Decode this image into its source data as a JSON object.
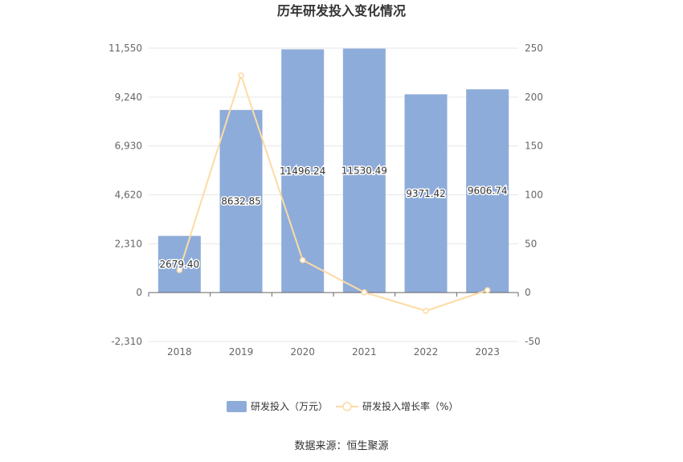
{
  "chart_data": {
    "type": "bar",
    "title": "历年研发投入变化情况",
    "categories": [
      "2018",
      "2019",
      "2020",
      "2021",
      "2022",
      "2023"
    ],
    "series": [
      {
        "name": "研发投入（万元）",
        "type": "bar",
        "axis": "left",
        "values": [
          2679.4,
          8632.85,
          11496.24,
          11530.49,
          9371.42,
          9606.74
        ],
        "labels": [
          "2679.40",
          "8632.85",
          "11496.24",
          "11530.49",
          "9371.42",
          "9606.74"
        ],
        "color": "#8eacda"
      },
      {
        "name": "研发投入增长率（%）",
        "type": "line",
        "axis": "right",
        "values": [
          23,
          222.2,
          33.2,
          0.3,
          -18.7,
          2.5
        ],
        "color": "#fddba4"
      }
    ],
    "y_left": {
      "ticks": [
        "-2,310",
        "0",
        "2,310",
        "4,620",
        "6,930",
        "9,240",
        "11,550"
      ],
      "range": [
        -2310,
        11550
      ]
    },
    "y_right": {
      "ticks": [
        "-50",
        "0",
        "50",
        "100",
        "150",
        "200",
        "250"
      ],
      "range": [
        -50,
        250
      ]
    },
    "grid": true,
    "legend_position": "bottom"
  },
  "source_text": "数据来源：恒生聚源"
}
